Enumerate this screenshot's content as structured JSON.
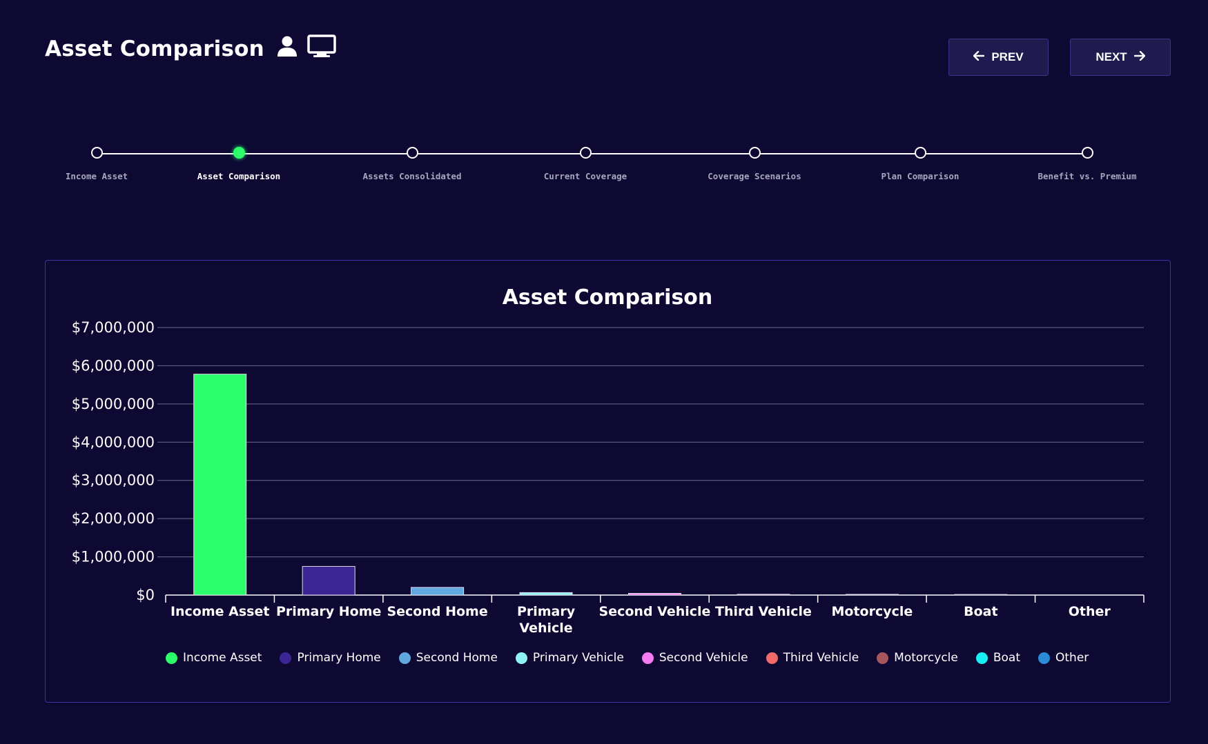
{
  "header": {
    "title": "Asset Comparison",
    "icons": [
      "user-icon",
      "monitor-icon"
    ]
  },
  "nav": {
    "prev_label": "PREV",
    "next_label": "NEXT"
  },
  "stepper": {
    "active_index": 1,
    "steps": [
      "Income Asset",
      "Asset Comparison",
      "Assets Consolidated",
      "Current Coverage",
      "Coverage Scenarios",
      "Plan Comparison",
      "Benefit vs. Premium"
    ]
  },
  "colors": {
    "background": "#0d0933",
    "accent": "#2bfe6a",
    "card_border": "#3b33a8"
  },
  "chart_data": {
    "type": "bar",
    "title": "Asset Comparison",
    "xlabel": "",
    "ylabel": "",
    "ylim": [
      0,
      7000000
    ],
    "yticks": [
      "$0",
      "$1,000,000",
      "$2,000,000",
      "$3,000,000",
      "$4,000,000",
      "$5,000,000",
      "$6,000,000",
      "$7,000,000"
    ],
    "grid": true,
    "legend_position": "bottom",
    "categories": [
      "Income Asset",
      "Primary Home",
      "Second Home",
      "Primary Vehicle",
      "Second Vehicle",
      "Third Vehicle",
      "Motorcycle",
      "Boat",
      "Other"
    ],
    "category_labels": [
      [
        "Income Asset"
      ],
      [
        "Primary Home"
      ],
      [
        "Second Home"
      ],
      [
        "Primary",
        "Vehicle"
      ],
      [
        "Second Vehicle"
      ],
      [
        "Third Vehicle"
      ],
      [
        "Motorcycle"
      ],
      [
        "Boat"
      ],
      [
        "Other"
      ]
    ],
    "values": [
      5780000,
      750000,
      200000,
      65000,
      45000,
      20000,
      18000,
      15000,
      0
    ],
    "colors": [
      "#2bfe6a",
      "#3b2494",
      "#5fa8e0",
      "#8ff3f3",
      "#f37cf2",
      "#f06a6a",
      "#a8565e",
      "#17eff5",
      "#2b8bd6"
    ]
  }
}
